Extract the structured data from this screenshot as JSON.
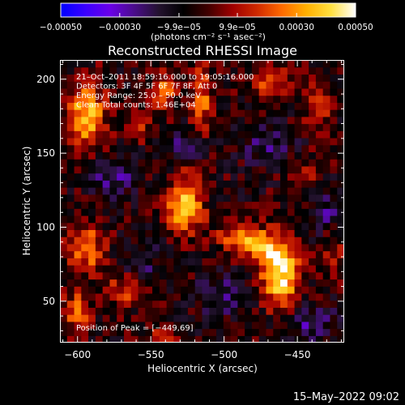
{
  "chart_data": {
    "type": "heatmap",
    "title": "Reconstructed RHESSI Image",
    "xlabel": "Heliocentric X (arcsec)",
    "ylabel": "Heliocentric Y (arcsec)",
    "xlim": [
      -612,
      -418
    ],
    "ylim": [
      22,
      213
    ],
    "x_ticks": [
      -600,
      -550,
      -500,
      -450
    ],
    "x_tick_labels": [
      "−600",
      "−550",
      "−500",
      "−450"
    ],
    "y_ticks": [
      50,
      100,
      150,
      200
    ],
    "y_tick_labels": [
      "50",
      "100",
      "150",
      "200"
    ],
    "colorbar": {
      "range": [
        -0.0005,
        0.0005
      ],
      "ticks": [
        -0.0005,
        -0.0003,
        -9.9e-05,
        9.9e-05,
        0.0003,
        0.0005
      ],
      "tick_labels": [
        "−0.00050",
        "−0.00030",
        "−9.9e−05",
        "9.9e−05",
        "0.00030",
        "0.00050"
      ],
      "unit_label": "(photons cm⁻² s⁻¹ asec⁻²)",
      "colormap": [
        "#0000ff",
        "#3a00ff",
        "#6a00e8",
        "#4a0d8a",
        "#23122e",
        "#000000",
        "#400000",
        "#a00000",
        "#d02a00",
        "#ff6a00",
        "#ffb000",
        "#ffe040",
        "#ffffff"
      ]
    },
    "annotations": [
      "21–Oct–2011 18:59:16.000 to 19:05:16.000",
      "Detectors: 3F 4F 5F 6F 7F 8F, Att 0",
      "Energy Range: 25.0 – 50.0 keV",
      "Clean     Total counts: 1.46E+04"
    ],
    "peak_label": "Position of Peak = [−449,69]",
    "peak_position": [
      -449,
      69
    ],
    "grid_size": [
      40,
      40
    ],
    "background_level": -5e-05,
    "sources": [
      {
        "x": -462,
        "y": 68,
        "sx": 9,
        "sy": 14,
        "amp": 0.00052
      },
      {
        "x": -474,
        "y": 87,
        "sx": 11,
        "sy": 8,
        "amp": 0.00033
      },
      {
        "x": -491,
        "y": 95,
        "sx": 9,
        "sy": 7,
        "amp": 0.00027
      },
      {
        "x": -527,
        "y": 113,
        "sx": 9,
        "sy": 11,
        "amp": 0.00044
      },
      {
        "x": -594,
        "y": 176,
        "sx": 9,
        "sy": 16,
        "amp": 0.0004
      },
      {
        "x": -594,
        "y": 86,
        "sx": 9,
        "sy": 12,
        "amp": 0.0003
      },
      {
        "x": -567,
        "y": 58,
        "sx": 9,
        "sy": 8,
        "amp": 0.00024
      },
      {
        "x": -541,
        "y": 193,
        "sx": 7,
        "sy": 10,
        "amp": 0.00027
      },
      {
        "x": -516,
        "y": 186,
        "sx": 5,
        "sy": 17,
        "amp": 0.0003
      },
      {
        "x": -468,
        "y": 198,
        "sx": 10,
        "sy": 9,
        "amp": 0.00023
      },
      {
        "x": -436,
        "y": 182,
        "sx": 6,
        "sy": 13,
        "amp": 0.00022
      },
      {
        "x": -601,
        "y": 43,
        "sx": 7,
        "sy": 10,
        "amp": 0.00026
      },
      {
        "x": -541,
        "y": 26,
        "sx": 7,
        "sy": 5,
        "amp": 0.00018
      },
      {
        "x": -448,
        "y": 136,
        "sx": 7,
        "sy": 7,
        "amp": 0.00016
      },
      {
        "x": -523,
        "y": 138,
        "sx": 7,
        "sy": 7,
        "amp": 0.00014
      },
      {
        "x": -558,
        "y": 168,
        "sx": 7,
        "sy": 7,
        "amp": 0.00014
      },
      {
        "x": -425,
        "y": 82,
        "sx": 6,
        "sy": 10,
        "amp": 0.00016
      }
    ],
    "negative_regions": [
      {
        "x": -574,
        "y": 135,
        "sx": 10,
        "sy": 8,
        "amp": 0.00022
      },
      {
        "x": -525,
        "y": 155,
        "sx": 8,
        "sy": 10,
        "amp": 0.00018
      },
      {
        "x": -500,
        "y": 55,
        "sx": 12,
        "sy": 10,
        "amp": 0.00016
      },
      {
        "x": -558,
        "y": 75,
        "sx": 9,
        "sy": 9,
        "amp": 0.00016
      },
      {
        "x": -440,
        "y": 35,
        "sx": 12,
        "sy": 8,
        "amp": 0.00018
      },
      {
        "x": -470,
        "y": 155,
        "sx": 12,
        "sy": 10,
        "amp": 0.00015
      },
      {
        "x": -430,
        "y": 110,
        "sx": 8,
        "sy": 10,
        "amp": 0.00014
      }
    ],
    "random_seed": 7
  },
  "footer": {
    "timestamp": "15–May–2022 09:02"
  }
}
